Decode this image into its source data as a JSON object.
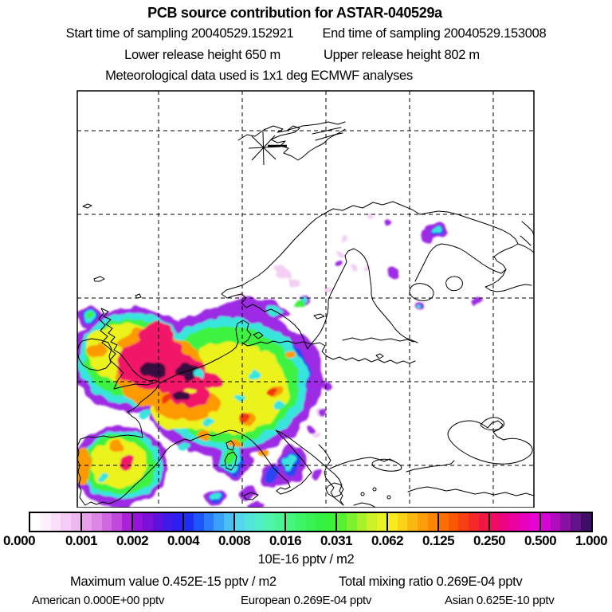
{
  "header": {
    "title": "PCB source contribution for ASTAR-040529a",
    "start_time": "Start time of sampling 20040529.152921",
    "end_time": "End time of sampling 20040529.153008",
    "lower_release": "Lower release height  650 m",
    "upper_release": "Upper release height  802 m",
    "meteo": "Meteorological data used is 1x1 deg ECMWF analyses"
  },
  "colorbar": {
    "tick_labels": [
      "0.000",
      "0.001",
      "0.002",
      "0.004",
      "0.008",
      "0.016",
      "0.031",
      "0.062",
      "0.125",
      "0.250",
      "0.500",
      "1.000"
    ],
    "unit_label": "10E-16 pptv / m2",
    "colors": [
      "#ffffff",
      "#fdf0fd",
      "#fadffa",
      "#f5ccf6",
      "#efb8f1",
      "#e7a0ea",
      "#de86e6",
      "#d268e1",
      "#c148dd",
      "#ac22d9",
      "#9614d9",
      "#7c0fd9",
      "#5f12de",
      "#4319e7",
      "#2b20f0",
      "#1d2ff7",
      "#1e55fb",
      "#2b7cfd",
      "#3aa0fa",
      "#4bc0f3",
      "#52d7ec",
      "#53e5da",
      "#52eec5",
      "#50f4ac",
      "#4cf594",
      "#45f57d",
      "#3ef467",
      "#38f353",
      "#33f243",
      "#39f136",
      "#55f231",
      "#7ef22e",
      "#a8f22b",
      "#cdf227",
      "#e9f222",
      "#f7ea1d",
      "#f9d317",
      "#fbb811",
      "#fc9e0a",
      "#fd8604",
      "#fc7001",
      "#fa5803",
      "#f74110",
      "#f42a28",
      "#f11744",
      "#ef0a64",
      "#ed0483",
      "#ec02a0",
      "#ea01bb",
      "#e803d3",
      "#d506d5",
      "#b00cbe",
      "#8a10a3",
      "#641287",
      "#3f0e66"
    ]
  },
  "footer": {
    "maximum": "Maximum value  0.452E-15 pptv / m2",
    "total": "Total mixing ratio  0.269E-04 pptv",
    "american": "American  0.000E+00 pptv",
    "european": "European  0.269E-04 pptv",
    "asian": "Asian  0.625E-10 pptv"
  },
  "chart_data": {
    "type": "heatmap",
    "title": "PCB source contribution for ASTAR-040529a",
    "region": "Europe, Scandinavia and Svalbard (lat/lon map with dashed graticule)",
    "sampling_start": "20040529.152921",
    "sampling_end": "20040529.153008",
    "lower_release_height_m": 650,
    "upper_release_height_m": 802,
    "meteorology": "1x1 deg ECMWF analyses",
    "colorbar_levels": [
      0.0,
      0.001,
      0.002,
      0.004,
      0.008,
      0.016,
      0.031,
      0.062,
      0.125,
      0.25,
      0.5,
      1.0
    ],
    "colorbar_unit": "10E-16 pptv / m2",
    "maximum_value": "0.452E-15 pptv / m2",
    "total_mixing_ratio": "0.269E-04 pptv",
    "contributions": [
      {
        "source": "American",
        "value": "0.000E+00 pptv"
      },
      {
        "source": "European",
        "value": "0.269E-04 pptv"
      },
      {
        "source": "Asian",
        "value": "0.625E-10 pptv"
      }
    ],
    "marker": "asterisk sampling-site marker over Svalbard",
    "plume_note": "Highest contributions (dark purple/magenta, near 0.5-1.0) over southern UK, the Channel and Benelux; green-yellow field over France, Spain and central Europe; violet fringes reach southern Scandinavia, the Baltic, Italy and the Balkans; isolated specks near the Kola peninsula."
  },
  "palette": {
    "pale": "#f3c9f2",
    "violet": "#9d2ae4",
    "blue": "#2945f1",
    "cyan": "#39e5dd",
    "green": "#3df23f",
    "yellow": "#ebf21e",
    "orange": "#fc9a06",
    "crimson": "#f11367",
    "red": "#f23410",
    "dark": "#37083f"
  }
}
